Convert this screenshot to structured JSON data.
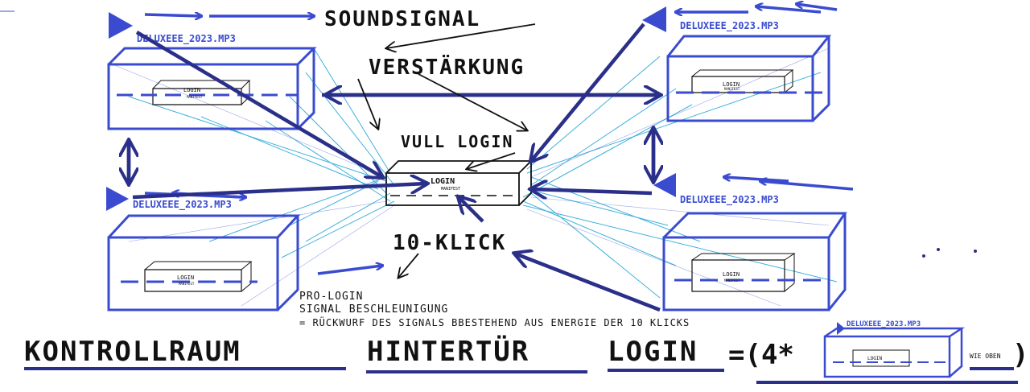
{
  "colors": {
    "blue": "#3a4bd0",
    "navy": "#2a2f8a",
    "cyan": "#2aa8d8",
    "ink": "#111111",
    "background": "#ffffff"
  },
  "labels": {
    "soundsignal": "SOUNDSIGNAL",
    "verstaerkung": "VERSTÄRKUNG",
    "vull_login": "VULL LOGIN",
    "klick": "10-KLICK",
    "pro_login": "PRO-LOGIN",
    "signal_beschleunigung": "SIGNAL BESCHLEUNIGUNG",
    "rueckwurf": "= RÜCKWURF DES SIGNALS BBESTEHEND AUS ENERGIE DER 10 KLICKS"
  },
  "boxes": [
    {
      "file": "DELUXEEE_2023.MP3",
      "inner_label": "LOGIN"
    },
    {
      "file": "DELUXEEE_2023.MP3",
      "inner_label": "LOGIN"
    },
    {
      "file": "DELUXEEE_2023.MP3",
      "inner_label": "LOGIN"
    },
    {
      "file": "DELUXEEE_2023.MP3",
      "inner_label": "LOGIN"
    }
  ],
  "center_box": {
    "label": "LOGIN",
    "sublabel": "MANIFEST"
  },
  "inner_sublabel": "MANIFEST",
  "footer": {
    "kontrollraum": "KONTROLLRAUM",
    "hintertuer": "HINTERTÜR",
    "login": "LOGIN",
    "formula": "=(4*",
    "close": ")",
    "mini_file": "DELUXEEE_2023.MP3",
    "mini_label": "LOGIN",
    "wie_oben": "WIE OBEN"
  }
}
